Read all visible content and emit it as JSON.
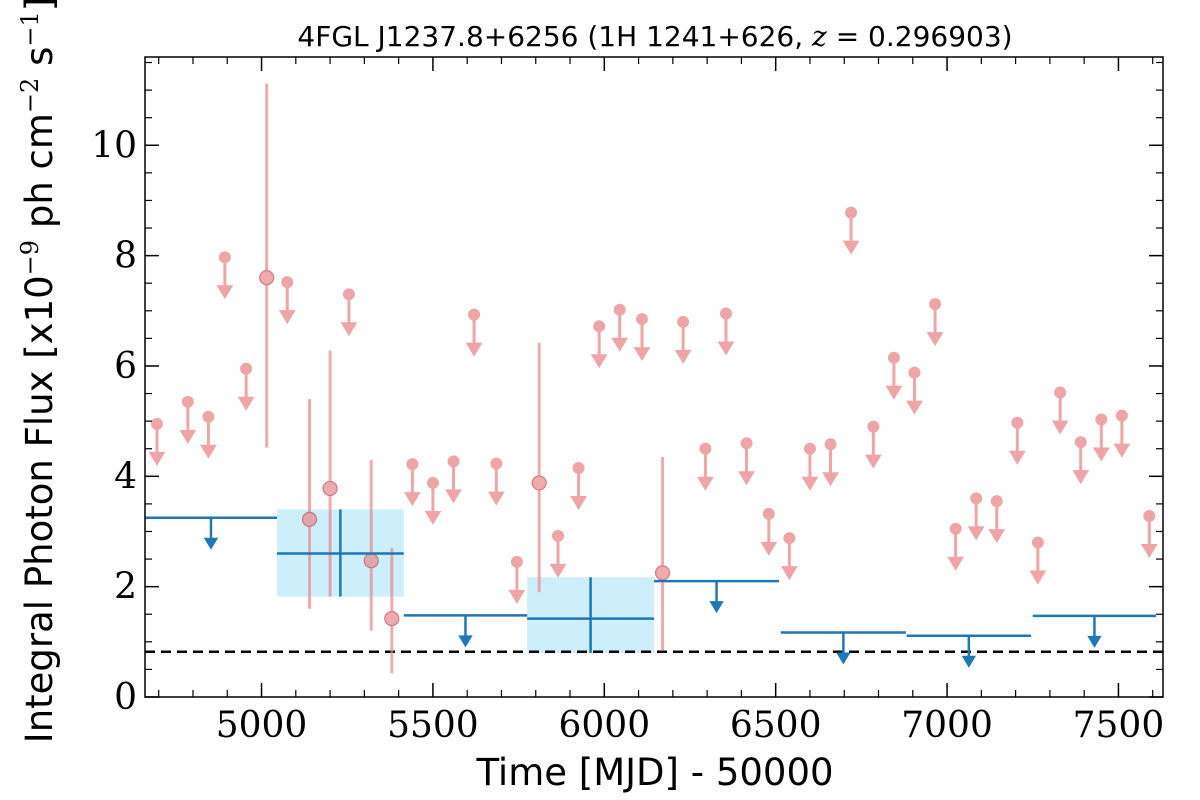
{
  "chart_data": {
    "type": "scatter",
    "title": "4FGL J1237.8+6256 (1H 1241+626, z = 0.296903)",
    "title_parts": {
      "prefix": "4FGL J1237.8+6256 (1H 1241+626, ",
      "z_symbol": "z",
      "z_rest": " = 0.296903)"
    },
    "xlabel": "Time [MJD] - 50000",
    "ylabel_parts": {
      "prefix": "Integral Photon Flux [x10",
      "exp1": "−9",
      "mid": " ph cm",
      "exp2": "−2",
      "mid2": " s",
      "exp3": "−1",
      "suffix": "]"
    },
    "xlim": [
      4660,
      7630
    ],
    "ylim": [
      0,
      11.6
    ],
    "xticks": [
      5000,
      5500,
      6000,
      6500,
      7000,
      7500
    ],
    "yticks": [
      0,
      2,
      4,
      6,
      8,
      10
    ],
    "grid": false,
    "colors": {
      "fine_points": "#e8888a",
      "coarse_bins": "#1f77b4",
      "coarse_band": "#cdeefb",
      "reference_line": "#000000"
    },
    "reference_line_y": 0.82,
    "fine_upper_limits": [
      {
        "x": 4695,
        "y": 4.95
      },
      {
        "x": 4785,
        "y": 5.35
      },
      {
        "x": 4845,
        "y": 5.08
      },
      {
        "x": 4893,
        "y": 7.97
      },
      {
        "x": 4955,
        "y": 5.95
      },
      {
        "x": 5075,
        "y": 7.52
      },
      {
        "x": 5255,
        "y": 7.3
      },
      {
        "x": 5440,
        "y": 4.22
      },
      {
        "x": 5500,
        "y": 3.88
      },
      {
        "x": 5560,
        "y": 4.27
      },
      {
        "x": 5620,
        "y": 6.93
      },
      {
        "x": 5685,
        "y": 4.23
      },
      {
        "x": 5745,
        "y": 2.45
      },
      {
        "x": 5865,
        "y": 2.92
      },
      {
        "x": 5925,
        "y": 4.15
      },
      {
        "x": 5985,
        "y": 6.72
      },
      {
        "x": 6045,
        "y": 7.02
      },
      {
        "x": 6110,
        "y": 6.85
      },
      {
        "x": 6230,
        "y": 6.8
      },
      {
        "x": 6295,
        "y": 4.5
      },
      {
        "x": 6355,
        "y": 6.95
      },
      {
        "x": 6415,
        "y": 4.6
      },
      {
        "x": 6480,
        "y": 3.32
      },
      {
        "x": 6540,
        "y": 2.88
      },
      {
        "x": 6600,
        "y": 4.5
      },
      {
        "x": 6660,
        "y": 4.58
      },
      {
        "x": 6720,
        "y": 8.78
      },
      {
        "x": 6785,
        "y": 4.9
      },
      {
        "x": 6845,
        "y": 6.15
      },
      {
        "x": 6905,
        "y": 5.88
      },
      {
        "x": 6965,
        "y": 7.12
      },
      {
        "x": 7025,
        "y": 3.05
      },
      {
        "x": 7085,
        "y": 3.6
      },
      {
        "x": 7145,
        "y": 3.55
      },
      {
        "x": 7205,
        "y": 4.97
      },
      {
        "x": 7265,
        "y": 2.8
      },
      {
        "x": 7330,
        "y": 5.52
      },
      {
        "x": 7390,
        "y": 4.62
      },
      {
        "x": 7450,
        "y": 5.03
      },
      {
        "x": 7510,
        "y": 5.1
      },
      {
        "x": 7590,
        "y": 3.28
      }
    ],
    "fine_detections": [
      {
        "x": 5015,
        "y": 7.6,
        "ylo": 4.52,
        "yhi": 11.12
      },
      {
        "x": 5140,
        "y": 3.22,
        "ylo": 1.6,
        "yhi": 5.4
      },
      {
        "x": 5200,
        "y": 3.78,
        "ylo": 1.82,
        "yhi": 6.28
      },
      {
        "x": 5320,
        "y": 2.47,
        "ylo": 1.2,
        "yhi": 4.3
      },
      {
        "x": 5380,
        "y": 1.42,
        "ylo": 0.43,
        "yhi": 2.7
      },
      {
        "x": 5810,
        "y": 3.88,
        "ylo": 1.9,
        "yhi": 6.42
      },
      {
        "x": 6170,
        "y": 2.25,
        "ylo": 0.85,
        "yhi": 4.35
      }
    ],
    "coarse_upper_limits": [
      {
        "x0": 4660,
        "x1": 5045,
        "y": 3.25
      },
      {
        "x0": 5415,
        "x1": 5775,
        "y": 1.48
      },
      {
        "x0": 6145,
        "x1": 6510,
        "y": 2.1
      },
      {
        "x0": 6515,
        "x1": 6880,
        "y": 1.17
      },
      {
        "x0": 6882,
        "x1": 7245,
        "y": 1.11
      },
      {
        "x0": 7250,
        "x1": 7610,
        "y": 1.47
      }
    ],
    "coarse_detections": [
      {
        "x0": 5045,
        "x1": 5415,
        "y": 2.6,
        "ylo": 1.82,
        "yhi": 3.4
      },
      {
        "x0": 5775,
        "x1": 6145,
        "y": 1.42,
        "ylo": 0.8,
        "yhi": 2.17
      }
    ]
  }
}
